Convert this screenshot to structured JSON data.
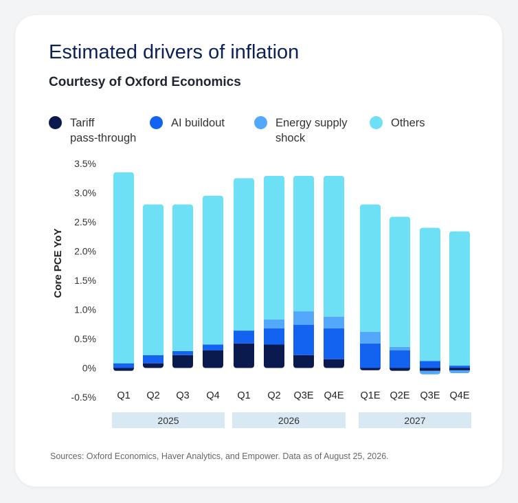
{
  "title": "Estimated drivers of inflation",
  "subtitle": "Courtesy of Oxford Economics",
  "footer": "Sources: Oxford Economics, Haver Analytics, and Empower. Data as of August 25, 2026.",
  "legend": [
    {
      "label": "Tariff\npass-through",
      "color": "#0b1a4e"
    },
    {
      "label": "AI buildout",
      "color": "#1463f0"
    },
    {
      "label": "Energy supply\nshock",
      "color": "#54a8fb"
    },
    {
      "label": "Others",
      "color": "#6ee0f5"
    }
  ],
  "chart_data": {
    "type": "bar",
    "stacked": true,
    "ylabel": "Core PCE YoY",
    "ylim": [
      -0.5,
      3.5
    ],
    "yticks": [
      3.5,
      3.0,
      2.5,
      2.0,
      1.5,
      1.0,
      0.5,
      0,
      -0.5
    ],
    "ytick_labels": [
      "3.5%",
      "3.0%",
      "2.5%",
      "2.0%",
      "1.5%",
      "1.0%",
      "0.5%",
      "0%",
      "-0.5%"
    ],
    "categories": [
      "Q1",
      "Q2",
      "Q3",
      "Q4",
      "Q1",
      "Q2",
      "Q3E",
      "Q4E",
      "Q1E",
      "Q2E",
      "Q3E",
      "Q4E"
    ],
    "groups": [
      {
        "label": "2025",
        "start": 0,
        "end": 3
      },
      {
        "label": "2026",
        "start": 4,
        "end": 7
      },
      {
        "label": "2027",
        "start": 8,
        "end": 11
      }
    ],
    "series": [
      {
        "name": "Tariff pass-through",
        "color": "#0b1a4e",
        "values": [
          -0.05,
          0.08,
          0.22,
          0.3,
          0.42,
          0.4,
          0.22,
          0.15,
          -0.04,
          -0.05,
          -0.05,
          -0.04
        ]
      },
      {
        "name": "AI buildout",
        "color": "#1463f0",
        "values": [
          0.08,
          0.14,
          0.07,
          0.1,
          0.22,
          0.28,
          0.52,
          0.53,
          0.42,
          0.3,
          0.12,
          0.04
        ]
      },
      {
        "name": "Energy supply shock",
        "color": "#54a8fb",
        "values": [
          0,
          0,
          0,
          0,
          0,
          0.15,
          0.23,
          0.2,
          0.2,
          0.06,
          -0.06,
          -0.05
        ]
      },
      {
        "name": "Others",
        "color": "#6ee0f5",
        "values": [
          3.27,
          2.58,
          2.51,
          2.55,
          2.61,
          2.46,
          2.32,
          2.41,
          2.18,
          2.23,
          2.28,
          2.3
        ]
      }
    ]
  }
}
